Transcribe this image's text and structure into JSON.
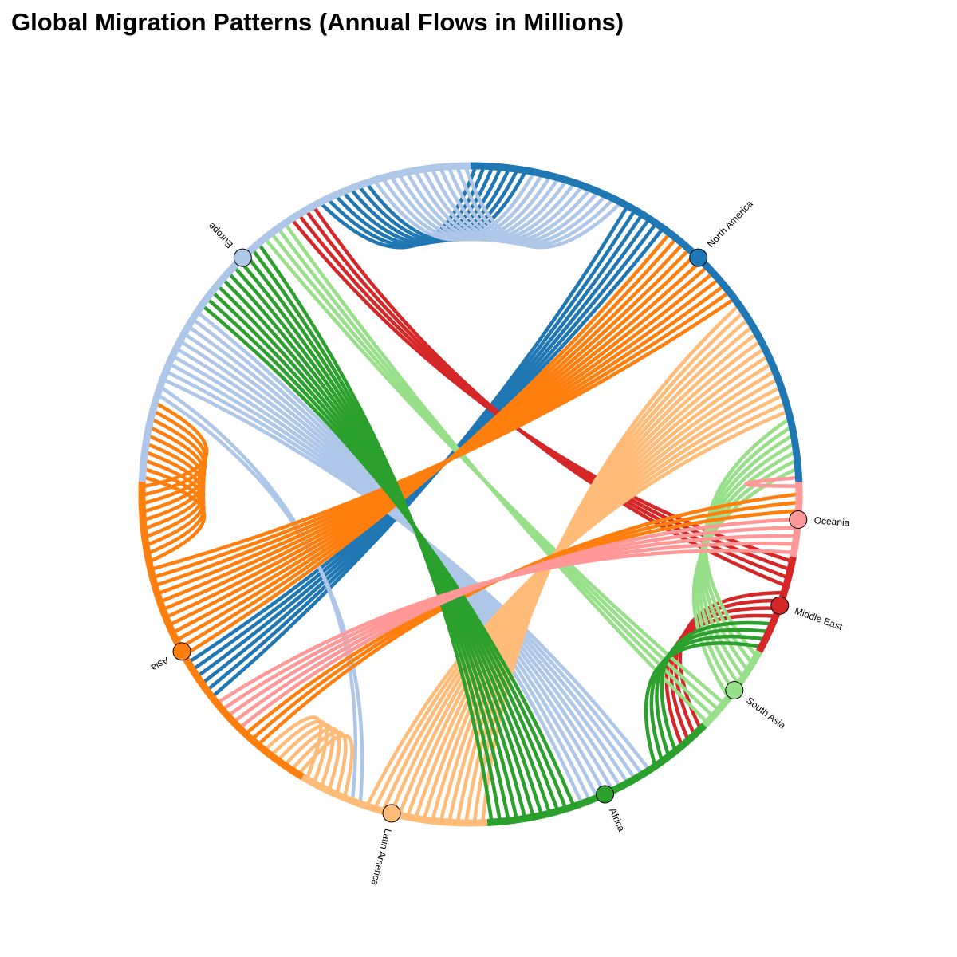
{
  "chart_data": {
    "type": "chord",
    "title": "Global Migration Patterns (Annual Flows in Millions)",
    "regions": [
      {
        "name": "North America",
        "color": "#1f77b4"
      },
      {
        "name": "Oceania",
        "color": "#ff9896"
      },
      {
        "name": "Middle East",
        "color": "#d62728"
      },
      {
        "name": "South Asia",
        "color": "#98df8a"
      },
      {
        "name": "Africa",
        "color": "#2ca02c"
      },
      {
        "name": "Latin America",
        "color": "#ffbb78"
      },
      {
        "name": "Asia",
        "color": "#ff7f0e"
      },
      {
        "name": "Europe",
        "color": "#aec7e8"
      }
    ],
    "flows": [
      {
        "source": "North America",
        "target": "Europe",
        "value": 7
      },
      {
        "source": "North America",
        "target": "Asia",
        "value": 6
      },
      {
        "source": "Europe",
        "target": "North America",
        "value": 12
      },
      {
        "source": "Europe",
        "target": "Africa",
        "value": 10
      },
      {
        "source": "Europe",
        "target": "Latin America",
        "value": 2
      },
      {
        "source": "Middle East",
        "target": "Europe",
        "value": 4
      },
      {
        "source": "Middle East",
        "target": "Africa",
        "value": 4
      },
      {
        "source": "South Asia",
        "target": "Europe",
        "value": 4
      },
      {
        "source": "South Asia",
        "target": "North America",
        "value": 7
      },
      {
        "source": "Latin America",
        "target": "North America",
        "value": 15
      },
      {
        "source": "Latin America",
        "target": "Asia",
        "value": 6
      },
      {
        "source": "Asia",
        "target": "North America",
        "value": 12
      },
      {
        "source": "Asia",
        "target": "Europe",
        "value": 10
      },
      {
        "source": "Asia",
        "target": "Oceania",
        "value": 3
      },
      {
        "source": "Africa",
        "target": "Europe",
        "value": 11
      },
      {
        "source": "Africa",
        "target": "Middle East",
        "value": 4
      },
      {
        "source": "Oceania",
        "target": "North America",
        "value": 1
      },
      {
        "source": "Oceania",
        "target": "Asia",
        "value": 5
      }
    ]
  }
}
